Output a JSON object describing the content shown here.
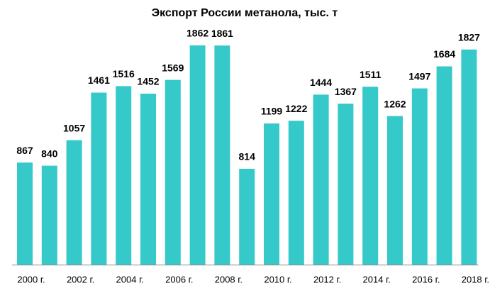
{
  "chart_data": {
    "type": "bar",
    "title": "Экспорт России метанола, тыс. т",
    "categories": [
      "2000 г.",
      null,
      "2002 г.",
      null,
      "2004 г.",
      null,
      "2006 г.",
      null,
      "2008 г.",
      null,
      "2010 г.",
      null,
      "2012 г.",
      null,
      "2014 г.",
      null,
      "2016 г.",
      null,
      "2018 г."
    ],
    "values": [
      867,
      840,
      1057,
      1461,
      1516,
      1452,
      1569,
      1862,
      1861,
      814,
      1199,
      1222,
      1444,
      1367,
      1511,
      1262,
      1497,
      1684,
      1827
    ],
    "color": "#35c9c9"
  }
}
